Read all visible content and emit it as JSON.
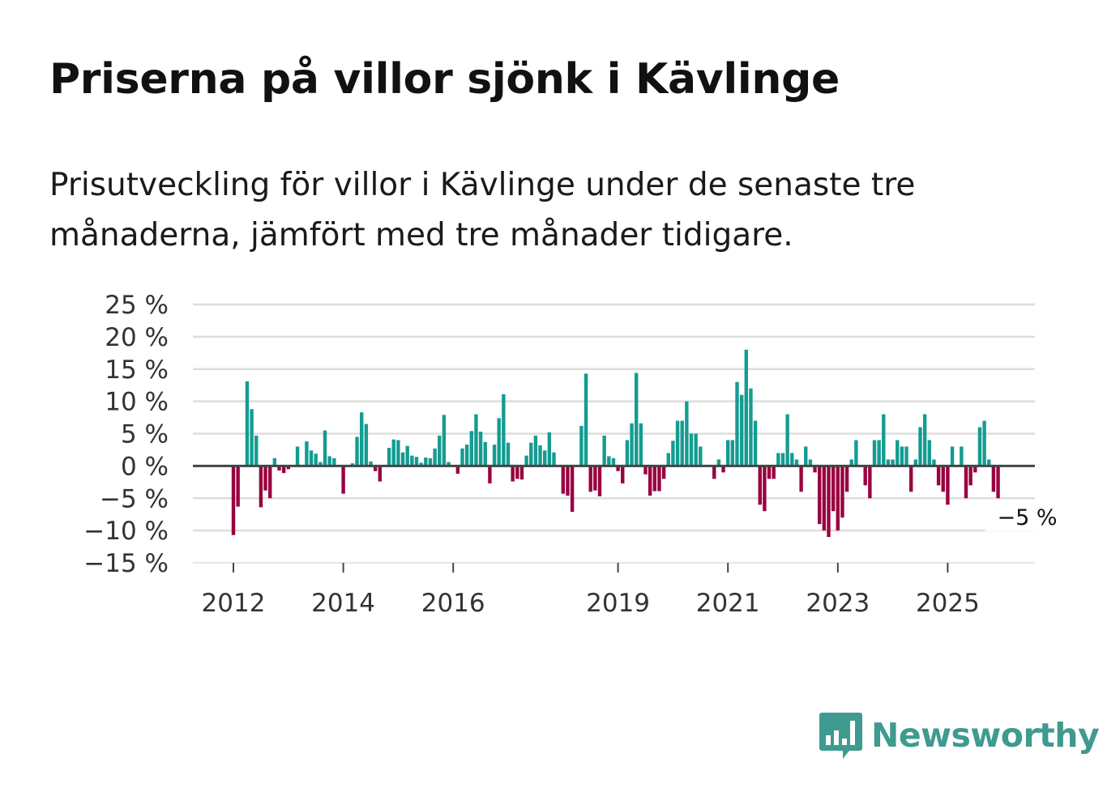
{
  "title": "Priserna på villor sjönk i Kävlinge",
  "subtitle": "Prisutveckling för villor i Kävlinge under de senaste tre månaderna, jämfört med tre månader tidigare.",
  "brand": {
    "name": "Newsworthy",
    "color": "#3f9a8f",
    "icon": "bar-chart-speech-bubble-icon"
  },
  "colors": {
    "positive": "#149c91",
    "negative": "#990040",
    "grid": "#dddddd",
    "zero_line": "#444444"
  },
  "chart_data": {
    "type": "bar",
    "title": "Priserna på villor sjönk i Kävlinge",
    "xlabel": "",
    "ylabel": "",
    "ylim": [
      -15,
      25
    ],
    "yticks": [
      25,
      20,
      15,
      10,
      5,
      0,
      -5,
      -10,
      -15
    ],
    "ytick_labels": [
      "25 %",
      "20 %",
      "15 %",
      "10 %",
      "5 %",
      "0 %",
      "−5 %",
      "−10 %",
      "−15 %"
    ],
    "xticks": [
      {
        "label": "2012",
        "index": 0
      },
      {
        "label": "2014",
        "index": 24
      },
      {
        "label": "2016",
        "index": 48
      },
      {
        "label": "2019",
        "index": 84
      },
      {
        "label": "2021",
        "index": 108
      },
      {
        "label": "2023",
        "index": 132
      },
      {
        "label": "2025",
        "index": 156
      }
    ],
    "start": "2012-01",
    "end_label": "−5 %",
    "grid": true,
    "values": [
      -10.7,
      -6.3,
      0,
      13.1,
      8.8,
      4.7,
      -6.4,
      -3.8,
      -5.0,
      1.2,
      -0.7,
      -1.1,
      -0.5,
      0,
      3.0,
      0,
      3.8,
      2.4,
      1.9,
      0.6,
      5.5,
      1.5,
      1.2,
      0,
      -4.3,
      0,
      0.4,
      4.5,
      8.3,
      6.5,
      0.7,
      -0.8,
      -2.4,
      0,
      2.8,
      4.1,
      4.0,
      2.1,
      3.1,
      1.6,
      1.4,
      0.5,
      1.3,
      1.2,
      2.7,
      4.7,
      7.9,
      0.6,
      0,
      -1.2,
      2.7,
      3.3,
      5.4,
      8.0,
      5.3,
      3.7,
      -2.7,
      3.3,
      7.4,
      11.1,
      3.6,
      -2.4,
      -2.0,
      -2.1,
      1.6,
      3.6,
      4.7,
      3.2,
      2.4,
      5.2,
      2.1,
      0,
      -4.3,
      -4.6,
      -7.1,
      0,
      6.2,
      14.3,
      -4.0,
      -3.8,
      -4.7,
      4.7,
      1.5,
      1.2,
      -0.8,
      -2.7,
      4.0,
      6.6,
      14.4,
      6.6,
      -1.3,
      -4.6,
      -3.9,
      -3.9,
      -2.0,
      2.0,
      3.9,
      7.0,
      7.0,
      10.0,
      5.0,
      5.0,
      3.0,
      0,
      0,
      -2.0,
      1.0,
      -1.0,
      4.0,
      4.0,
      13.0,
      11.0,
      18.0,
      12.0,
      7.0,
      -6.0,
      -7.0,
      -2.0,
      -2.0,
      2.0,
      2.0,
      8.0,
      2.0,
      1.0,
      -4.0,
      3.0,
      1.0,
      -1.0,
      -9.0,
      -10.0,
      -11.0,
      -7.0,
      -10.0,
      -8.0,
      -4.0,
      1.0,
      4.0,
      0,
      -3.0,
      -5.0,
      4.0,
      4.0,
      8.0,
      1.0,
      1.0,
      4.0,
      3.0,
      3.0,
      -4.0,
      1.0,
      6.0,
      8.0,
      4.0,
      1.0,
      -3.0,
      -4.0,
      -6.0,
      3.0,
      0,
      3.0,
      -5.0,
      -3.0,
      -1.0,
      6.0,
      7.0,
      1.0,
      -4.0,
      -5.0
    ]
  }
}
